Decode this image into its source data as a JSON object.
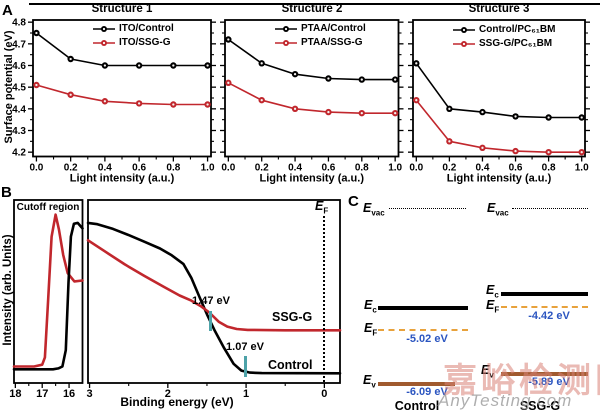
{
  "figure": {
    "panel_labels": {
      "a": "A",
      "b": "B",
      "c": "C"
    }
  },
  "colors": {
    "series_black": "#000000",
    "series_red": "#C1272D",
    "annotation_teal": "#4DA2A8",
    "value_blue": "#2B55C0",
    "ef_orange": "#E8A23C",
    "ev_brown": "#A05A2E",
    "watermark_pink": "#D98278",
    "watermark_gray": "#9B9B9B"
  },
  "chart_data": [
    {
      "type": "line",
      "title": "Structure 1",
      "xlabel": "Light intensity (a.u.)",
      "ylabel": "Surface potential (eV)",
      "x": [
        0.0,
        0.2,
        0.4,
        0.6,
        0.8,
        1.0
      ],
      "xlim": [
        -0.02,
        1.02
      ],
      "xticks": [
        0.0,
        0.2,
        0.4,
        0.6,
        0.8,
        1.0
      ],
      "xtick_labels": [
        "0.0",
        "0.2",
        "0.4",
        "0.6",
        "0.8",
        "1.0"
      ],
      "xminor": [
        0.1,
        0.3,
        0.5,
        0.7,
        0.9
      ],
      "ylim": [
        4.18,
        4.81
      ],
      "yticks": [
        4.2,
        4.3,
        4.4,
        4.5,
        4.6,
        4.7,
        4.8
      ],
      "yminor": [
        4.25,
        4.35,
        4.45,
        4.55,
        4.65,
        4.75
      ],
      "series": [
        {
          "name": "ITO/Control",
          "color": "#000000",
          "values": [
            4.75,
            4.63,
            4.6,
            4.6,
            4.6,
            4.6
          ]
        },
        {
          "name": "ITO/SSG-G",
          "color": "#C1272D",
          "values": [
            4.51,
            4.465,
            4.435,
            4.425,
            4.42,
            4.42
          ]
        }
      ]
    },
    {
      "type": "line",
      "title": "Structure 2",
      "xlabel": "Light intensity (a.u.)",
      "x": [
        0.0,
        0.2,
        0.4,
        0.6,
        0.8,
        1.0
      ],
      "xlim": [
        -0.02,
        1.02
      ],
      "xticks": [
        0.0,
        0.2,
        0.4,
        0.6,
        0.8,
        1.0
      ],
      "xtick_labels": [
        "0.0",
        "0.2",
        "0.4",
        "0.6",
        "0.8",
        "1.0"
      ],
      "xminor": [
        0.1,
        0.3,
        0.5,
        0.7,
        0.9
      ],
      "ylim": [
        4.18,
        4.81
      ],
      "yticks": [
        4.2,
        4.3,
        4.4,
        4.5,
        4.6,
        4.7,
        4.8
      ],
      "yminor": [
        4.25,
        4.35,
        4.45,
        4.55,
        4.65,
        4.75
      ],
      "series": [
        {
          "name": "PTAA/Control",
          "color": "#000000",
          "values": [
            4.72,
            4.61,
            4.56,
            4.54,
            4.535,
            4.535
          ]
        },
        {
          "name": "PTAA/SSG-G",
          "color": "#C1272D",
          "values": [
            4.52,
            4.44,
            4.4,
            4.385,
            4.38,
            4.38
          ]
        }
      ]
    },
    {
      "type": "line",
      "title": "Structure 3",
      "xlabel": "Light intensity (a.u.)",
      "x": [
        0.0,
        0.2,
        0.4,
        0.6,
        0.8,
        1.0
      ],
      "xlim": [
        -0.02,
        1.02
      ],
      "xticks": [
        0.0,
        0.2,
        0.4,
        0.6,
        0.8,
        1.0
      ],
      "xtick_labels": [
        "0.0",
        "0.2",
        "0.4",
        "0.6",
        "0.8",
        "1.0"
      ],
      "xminor": [
        0.1,
        0.3,
        0.5,
        0.7,
        0.9
      ],
      "ylim": [
        4.18,
        4.81
      ],
      "yticks": [
        4.2,
        4.3,
        4.4,
        4.5,
        4.6,
        4.7,
        4.8
      ],
      "yminor": [
        4.25,
        4.35,
        4.45,
        4.55,
        4.65,
        4.75
      ],
      "series": [
        {
          "name": "Control/PC₆₁BM",
          "color": "#000000",
          "values": [
            4.61,
            4.4,
            4.385,
            4.365,
            4.36,
            4.36
          ]
        },
        {
          "name": "SSG-G/PC₆₁BM",
          "color": "#C1272D",
          "values": [
            4.44,
            4.25,
            4.22,
            4.205,
            4.2,
            4.2
          ]
        }
      ]
    },
    {
      "type": "line",
      "title": "Cutoff region",
      "xlim": [
        18.05,
        15.5
      ],
      "xticks": [
        18,
        17,
        16
      ],
      "xtick_labels": [
        "18",
        "17",
        "16"
      ],
      "xminor": [
        17.5,
        16.5
      ],
      "ylim": [
        0,
        1
      ],
      "series": [
        {
          "name": "SSG-G",
          "color": "#C1272D",
          "points": [
            [
              18.05,
              0.09
            ],
            [
              17.3,
              0.09
            ],
            [
              17.0,
              0.1
            ],
            [
              16.9,
              0.14
            ],
            [
              16.78,
              0.45
            ],
            [
              16.65,
              0.8
            ],
            [
              16.5,
              0.92
            ],
            [
              16.38,
              0.84
            ],
            [
              16.22,
              0.7
            ],
            [
              16.05,
              0.6
            ],
            [
              15.8,
              0.555
            ],
            [
              15.5,
              0.56
            ]
          ]
        },
        {
          "name": "Control",
          "color": "#000000",
          "points": [
            [
              18.05,
              0.075
            ],
            [
              16.6,
              0.075
            ],
            [
              16.4,
              0.08
            ],
            [
              16.25,
              0.09
            ],
            [
              16.12,
              0.18
            ],
            [
              16.02,
              0.55
            ],
            [
              15.93,
              0.8
            ],
            [
              15.82,
              0.87
            ],
            [
              15.68,
              0.875
            ],
            [
              15.5,
              0.845
            ]
          ]
        }
      ]
    },
    {
      "type": "line",
      "title": "",
      "xlabel": "Binding energy (eV)",
      "ylabel": "Intensity (arb. Units)",
      "xlim": [
        3.02,
        -0.2
      ],
      "xticks": [
        3,
        2,
        1,
        0
      ],
      "xtick_labels": [
        "3",
        "2",
        "1",
        "0"
      ],
      "xminor": [
        2.5,
        1.5,
        0.5
      ],
      "ylim": [
        0,
        1
      ],
      "series": [
        {
          "name": "Control",
          "color": "#000000",
          "points": [
            [
              3.02,
              0.875
            ],
            [
              2.9,
              0.868
            ],
            [
              2.7,
              0.842
            ],
            [
              2.5,
              0.808
            ],
            [
              2.3,
              0.772
            ],
            [
              2.1,
              0.735
            ],
            [
              1.95,
              0.698
            ],
            [
              1.8,
              0.65
            ],
            [
              1.7,
              0.575
            ],
            [
              1.6,
              0.475
            ],
            [
              1.5,
              0.375
            ],
            [
              1.4,
              0.285
            ],
            [
              1.28,
              0.19
            ],
            [
              1.16,
              0.105
            ],
            [
              1.06,
              0.068
            ],
            [
              0.95,
              0.057
            ],
            [
              0.8,
              0.054
            ],
            [
              -0.2,
              0.053
            ]
          ]
        },
        {
          "name": "SSG-G",
          "color": "#C1272D",
          "points": [
            [
              3.02,
              0.78
            ],
            [
              2.8,
              0.718
            ],
            [
              2.55,
              0.648
            ],
            [
              2.3,
              0.585
            ],
            [
              2.05,
              0.525
            ],
            [
              1.85,
              0.478
            ],
            [
              1.7,
              0.45
            ],
            [
              1.58,
              0.42
            ],
            [
              1.47,
              0.385
            ],
            [
              1.35,
              0.335
            ],
            [
              1.24,
              0.308
            ],
            [
              1.12,
              0.295
            ],
            [
              0.98,
              0.29
            ],
            [
              0.5,
              0.288
            ],
            [
              -0.2,
              0.288
            ]
          ]
        }
      ],
      "annotations": [
        {
          "text": "1.47 eV",
          "x": 1.47
        },
        {
          "text": "1.07 eV",
          "x": 1.07
        }
      ],
      "curve_labels": {
        "ssg": "SSG-G",
        "control": "Control"
      },
      "ef_label": {
        "main": "E",
        "sub": "F"
      }
    }
  ],
  "panel_c": {
    "evac_label": {
      "main": "E",
      "sub": "vac"
    },
    "ec_label": {
      "main": "E",
      "sub": "c"
    },
    "ef_label": {
      "main": "E",
      "sub": "F"
    },
    "ev_label": {
      "main": "E",
      "sub": "v"
    },
    "control": {
      "name": "Control",
      "ef_value": "-5.02 eV",
      "ev_value": "-6.09 eV"
    },
    "ssg": {
      "name": "SSG-G",
      "ef_value": "-4.42 eV",
      "ev_value": "-5.89 eV"
    }
  },
  "watermark": {
    "cn": "嘉峪检测网",
    "en": "AnyTesting.com"
  }
}
